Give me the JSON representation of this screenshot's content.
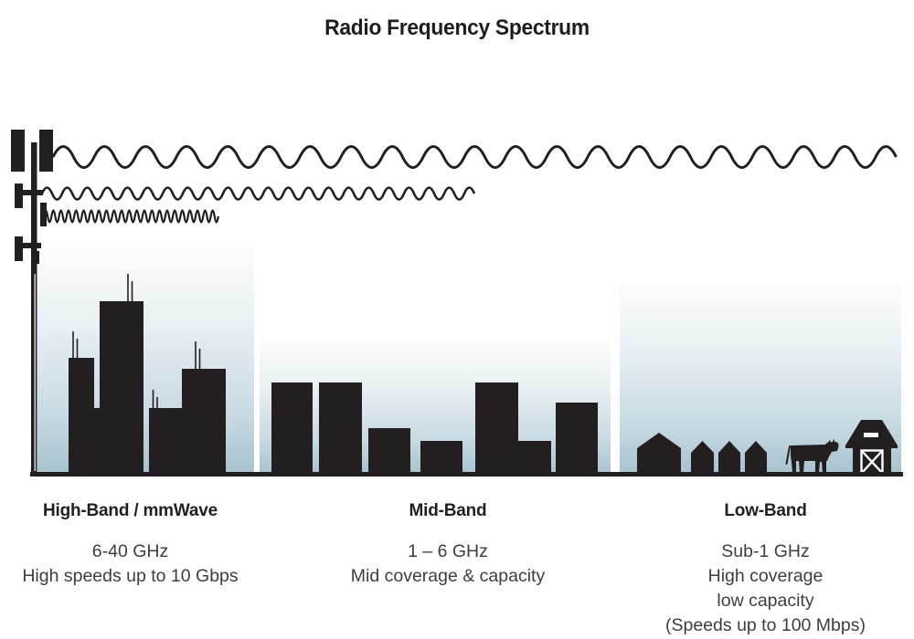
{
  "title": "Radio Frequency Spectrum",
  "bands": [
    {
      "name": "High-Band / mmWave",
      "details": [
        "6-40 GHz",
        "High speeds up to 10 Gbps"
      ],
      "scene_icon": "city-skyline",
      "wave_icon": "short-wavelength-wave"
    },
    {
      "name": "Mid-Band",
      "details": [
        "1 – 6 GHz",
        "Mid coverage & capacity"
      ],
      "scene_icon": "midrise-buildings",
      "wave_icon": "medium-wavelength-wave"
    },
    {
      "name": "Low-Band",
      "details": [
        "Sub-1 GHz",
        "High coverage",
        "low capacity",
        "(Speeds up to 100 Mbps)"
      ],
      "scene_icon": "rural-farm",
      "wave_icon": "long-wavelength-wave"
    }
  ],
  "colors": {
    "ink": "#231f20",
    "text": "#3e3e3e",
    "sky_top": "#fdfefe",
    "sky_mid": "#e9f1f4",
    "sky_bottom": "#a6c2cf"
  }
}
